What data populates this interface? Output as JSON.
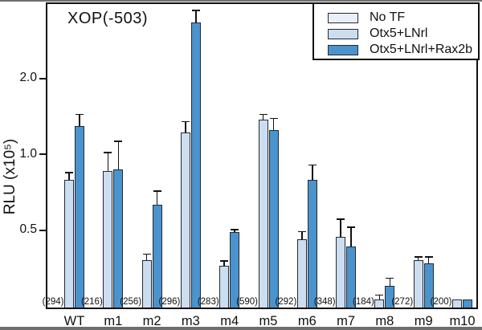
{
  "page": {
    "title": "XOP(-503) luciferase reporter assay"
  },
  "chart_data": {
    "type": "bar",
    "title": "XOP(-503)",
    "ylabel": "RLU (x10⁵)",
    "xlabel": "",
    "yscale": "log2",
    "ybase": 0.243,
    "ytick_values": [
      0.5,
      1.0,
      2.0
    ],
    "ytick_labels": [
      "0.5",
      "1.0",
      "2.0"
    ],
    "grid": false,
    "legend_position": "top-right",
    "categories": [
      "WT",
      "m1",
      "m2",
      "m3",
      "m4",
      "m5",
      "m6",
      "m7",
      "m8",
      "m9",
      "m10"
    ],
    "annotations": [
      "(294)",
      "(216)",
      "(256)",
      "(296)",
      "(283)",
      "(590)",
      "(292)",
      "(348)",
      "(184)",
      "(272)",
      "(200)"
    ],
    "series": [
      {
        "name": "No TF",
        "color": "#e9effa",
        "values": [
          null,
          null,
          null,
          null,
          null,
          null,
          null,
          null,
          null,
          null,
          null
        ],
        "errors_top": [
          null,
          null,
          null,
          null,
          null,
          null,
          null,
          null,
          null,
          null,
          null
        ]
      },
      {
        "name": "Otx5+LNrl",
        "color": "#cdddf0",
        "values": [
          0.79,
          0.86,
          0.38,
          1.22,
          0.36,
          1.37,
          0.46,
          0.47,
          0.265,
          0.38,
          0.265
        ],
        "errors_top": [
          0.84,
          1.01,
          0.4,
          1.34,
          0.375,
          1.43,
          0.49,
          0.55,
          0.275,
          0.39,
          null
        ]
      },
      {
        "name": "Otx5+LNrl+Rax2b",
        "color": "#4b93cc",
        "values": [
          1.29,
          0.87,
          0.63,
          3.33,
          0.49,
          1.25,
          0.79,
          0.43,
          0.3,
          0.37,
          0.265
        ],
        "errors_top": [
          1.43,
          1.12,
          0.71,
          3.7,
          0.5,
          1.38,
          0.9,
          0.51,
          0.32,
          0.39,
          null
        ]
      }
    ]
  }
}
